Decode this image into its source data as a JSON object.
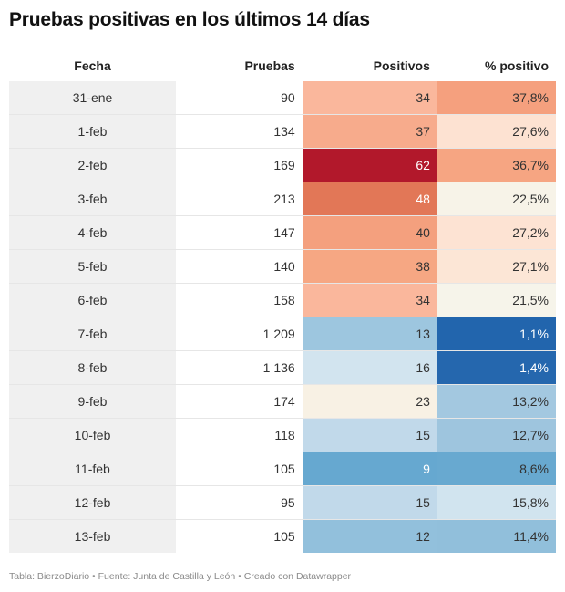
{
  "title": "Pruebas positivas en los últimos 14 días",
  "footer": "Tabla: BierzoDiario • Fuente: Junta de Castilla y León • Creado con Datawrapper",
  "chart_data": {
    "type": "table",
    "title": "Pruebas positivas en los últimos 14 días",
    "columns": [
      "Fecha",
      "Pruebas",
      "Positivos",
      "% positivo"
    ],
    "rows": [
      {
        "fecha": "31-ene",
        "pruebas": "90",
        "positivos": "34",
        "pct": "37,8%",
        "pos_bg": "#fab79c",
        "pct_bg": "#f5a07e",
        "pos_fg": "#333333",
        "pct_fg": "#333333"
      },
      {
        "fecha": "1-feb",
        "pruebas": "134",
        "positivos": "37",
        "pct": "27,6%",
        "pos_bg": "#f7ab8c",
        "pct_bg": "#fde2d2",
        "pos_fg": "#333333",
        "pct_fg": "#333333"
      },
      {
        "fecha": "2-feb",
        "pruebas": "169",
        "positivos": "62",
        "pct": "36,7%",
        "pos_bg": "#b2182b",
        "pct_bg": "#f6a582",
        "pos_fg": "#ffffff",
        "pct_fg": "#333333"
      },
      {
        "fecha": "3-feb",
        "pruebas": "213",
        "positivos": "48",
        "pct": "22,5%",
        "pos_bg": "#e27757",
        "pct_bg": "#f7f3e8",
        "pos_fg": "#ffffff",
        "pct_fg": "#333333"
      },
      {
        "fecha": "4-feb",
        "pruebas": "147",
        "positivos": "40",
        "pct": "27,2%",
        "pos_bg": "#f4a07e",
        "pct_bg": "#fde3d3",
        "pos_fg": "#333333",
        "pct_fg": "#333333"
      },
      {
        "fecha": "5-feb",
        "pruebas": "140",
        "positivos": "38",
        "pct": "27,1%",
        "pos_bg": "#f6a783",
        "pct_bg": "#fce6d6",
        "pos_fg": "#333333",
        "pct_fg": "#333333"
      },
      {
        "fecha": "6-feb",
        "pruebas": "158",
        "positivos": "34",
        "pct": "21,5%",
        "pos_bg": "#fab79c",
        "pct_bg": "#f6f4ea",
        "pos_fg": "#333333",
        "pct_fg": "#333333"
      },
      {
        "fecha": "7-feb",
        "pruebas": "1 209",
        "positivos": "13",
        "pct": "1,1%",
        "pos_bg": "#9dc6df",
        "pct_bg": "#2265ad",
        "pos_fg": "#333333",
        "pct_fg": "#ffffff"
      },
      {
        "fecha": "8-feb",
        "pruebas": "1 136",
        "positivos": "16",
        "pct": "1,4%",
        "pos_bg": "#d2e4ef",
        "pct_bg": "#2567ae",
        "pos_fg": "#333333",
        "pct_fg": "#ffffff"
      },
      {
        "fecha": "9-feb",
        "pruebas": "174",
        "positivos": "23",
        "pct": "13,2%",
        "pos_bg": "#f8f1e4",
        "pct_bg": "#a3c8e0",
        "pos_fg": "#333333",
        "pct_fg": "#333333"
      },
      {
        "fecha": "10-feb",
        "pruebas": "118",
        "positivos": "15",
        "pct": "12,7%",
        "pos_bg": "#c1d9ea",
        "pct_bg": "#9ec5de",
        "pos_fg": "#333333",
        "pct_fg": "#333333"
      },
      {
        "fecha": "11-feb",
        "pruebas": "105",
        "positivos": "9",
        "pct": "8,6%",
        "pos_bg": "#66a8d0",
        "pct_bg": "#68a9d0",
        "pos_fg": "#ffffff",
        "pct_fg": "#333333"
      },
      {
        "fecha": "12-feb",
        "pruebas": "95",
        "positivos": "15",
        "pct": "15,8%",
        "pos_bg": "#c1d9ea",
        "pct_bg": "#d1e4ef",
        "pos_fg": "#333333",
        "pct_fg": "#333333"
      },
      {
        "fecha": "13-feb",
        "pruebas": "105",
        "positivos": "12",
        "pct": "11,4%",
        "pos_bg": "#92c0dc",
        "pct_bg": "#91bfdb",
        "pos_fg": "#333333",
        "pct_fg": "#333333"
      }
    ]
  }
}
